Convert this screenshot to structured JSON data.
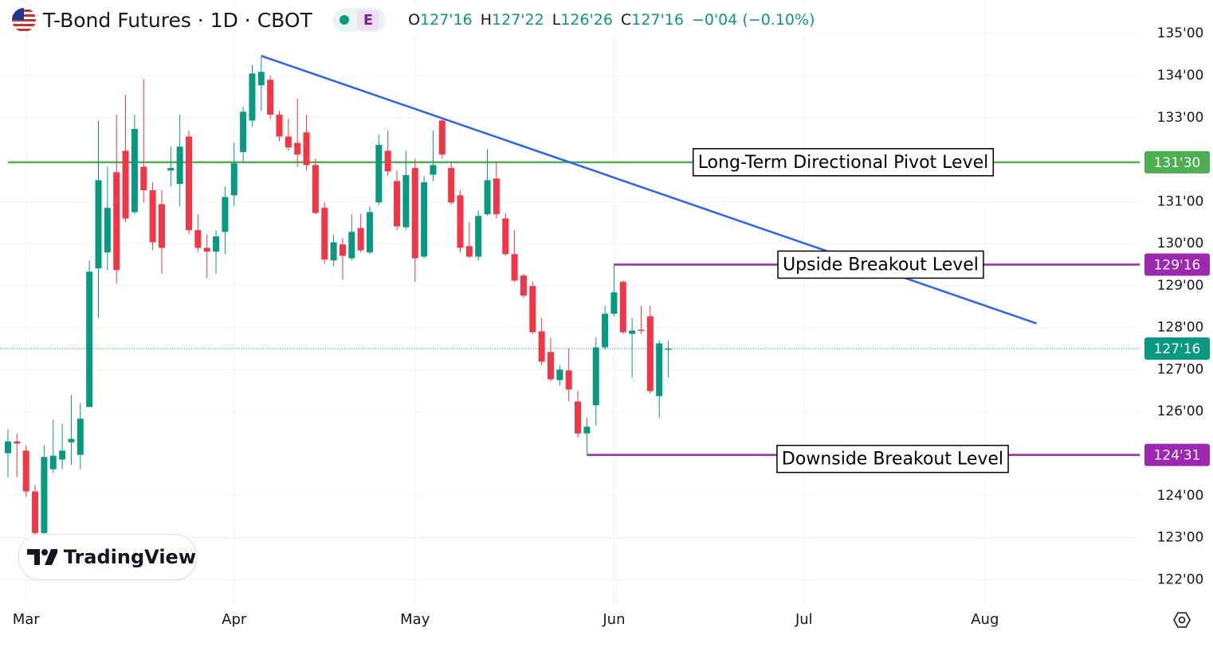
{
  "chart_data": {
    "type": "candlestick",
    "title": "T-Bond Futures · 1D · CBOT",
    "badge": "E",
    "ohlc_labels": [
      {
        "key": "O",
        "text": "127'16"
      },
      {
        "key": "H",
        "text": "127'22"
      },
      {
        "key": "L",
        "text": "126'26"
      },
      {
        "key": "C",
        "text": "127'16"
      }
    ],
    "change": "−0'04 (−0.10%)",
    "logo": "TradingView",
    "up_color": "#089981",
    "down_color": "#f23645",
    "grid": true,
    "categories": [
      null,
      null,
      "Mar",
      null,
      null,
      null,
      null,
      null,
      null,
      null,
      null,
      null,
      null,
      null,
      null,
      null,
      null,
      null,
      null,
      null,
      null,
      null,
      null,
      null,
      null,
      "Apr",
      null,
      null,
      null,
      null,
      null,
      null,
      null,
      null,
      null,
      null,
      null,
      null,
      null,
      null,
      null,
      null,
      null,
      null,
      null,
      "May",
      null,
      null,
      null,
      null,
      null,
      null,
      null,
      null,
      null,
      null,
      null,
      null,
      null,
      null,
      null,
      null,
      null,
      null,
      null,
      null,
      null,
      "Jun",
      null,
      null,
      null,
      null,
      null,
      null,
      null,
      null,
      null,
      null,
      null,
      null,
      null,
      null,
      null,
      null,
      null,
      null,
      null,
      null,
      "Jul",
      null,
      null,
      null,
      null,
      null,
      null,
      null,
      null,
      null,
      null,
      null,
      null,
      null,
      null,
      null,
      null,
      null,
      null,
      null,
      "Aug",
      null,
      null,
      null,
      null,
      null,
      null,
      null,
      null,
      null,
      null,
      null,
      null,
      null,
      null,
      null,
      null
    ],
    "open": [
      125.01,
      125.29,
      125.07,
      124.1,
      123.11,
      124.63,
      124.86,
      125.27,
      124.97,
      126.11,
      129.41,
      129.79,
      131.7,
      132.21,
      130.75,
      131.83,
      131.27,
      130.94,
      131.74,
      131.42,
      132.55,
      130.32,
      129.9,
      129.81,
      130.28,
      131.15,
      132.18,
      132.93,
      133.77,
      133.9,
      133.07,
      132.55,
      132.4,
      132.65,
      131.87,
      130.85,
      129.6,
      129.98,
      129.65,
      130.37,
      129.79,
      130.98,
      132.21,
      131.49,
      130.39,
      131.8,
      129.69,
      131.64,
      132.93,
      131.8,
      131.15,
      129.94,
      129.69,
      130.7,
      131.55,
      130.6,
      129.75,
      129.24,
      128.99,
      127.91,
      127.42,
      126.75,
      126.98,
      126.24,
      125.48,
      126.15,
      127.53,
      128.33,
      129.09,
      127.85,
      127.95,
      128.27,
      126.37,
      127.5,
      null,
      null,
      null,
      null,
      null,
      null,
      null,
      null,
      null,
      null,
      null,
      null,
      null,
      null,
      null,
      null,
      null,
      null,
      null,
      null,
      null,
      null,
      null,
      null,
      null,
      null,
      null,
      null,
      null,
      null,
      null,
      null,
      null,
      null,
      null,
      null,
      null,
      null,
      null,
      null,
      null,
      null,
      null,
      null,
      null,
      null,
      null,
      null,
      null,
      null,
      null
    ],
    "high": [
      125.58,
      125.48,
      125.2,
      124.25,
      125.2,
      125.81,
      125.71,
      126.39,
      126.2,
      129.6,
      132.93,
      131.83,
      133.07,
      133.54,
      133.07,
      133.92,
      131.46,
      131.27,
      132.31,
      133.07,
      132.69,
      130.7,
      130.22,
      130.32,
      131.36,
      132.4,
      133.26,
      134.26,
      134.45,
      134.01,
      133.16,
      132.97,
      133.45,
      133.07,
      132.02,
      130.98,
      130.22,
      130.13,
      130.7,
      130.7,
      130.89,
      132.59,
      132.69,
      131.74,
      132.21,
      132.02,
      131.61,
      132.69,
      133.01,
      131.93,
      131.27,
      130.51,
      130.79,
      132.25,
      131.93,
      130.73,
      130.32,
      129.28,
      129.09,
      128.23,
      127.76,
      127.1,
      127.51,
      126.49,
      125.86,
      127.76,
      128.52,
      129.5,
      129.12,
      128.23,
      128.52,
      128.52,
      127.7,
      127.6875,
      null,
      null,
      null,
      null,
      null,
      null,
      null,
      null,
      null,
      null,
      null,
      null,
      null,
      null,
      null,
      null,
      null,
      null,
      null,
      null,
      null,
      null,
      null,
      null,
      null,
      null,
      null,
      null,
      null,
      null,
      null,
      null,
      null,
      null,
      null,
      null,
      null,
      null,
      null,
      null,
      null,
      null,
      null,
      null,
      null,
      null,
      null,
      null,
      null,
      null,
      null
    ],
    "low": [
      124.44,
      124.44,
      123.97,
      122.92,
      122.92,
      124.54,
      124.63,
      124.73,
      124.63,
      126.11,
      128.23,
      129.37,
      129.05,
      130.51,
      130.7,
      130.98,
      129.84,
      129.28,
      131.36,
      130.89,
      130.22,
      129.79,
      129.18,
      129.28,
      129.75,
      130.89,
      131.93,
      132.78,
      133.16,
      132.97,
      132.44,
      132.21,
      131.83,
      131.74,
      130.7,
      129.52,
      129.46,
      129.14,
      129.6,
      129.79,
      129.75,
      130.92,
      131.61,
      130.32,
      130.32,
      129.09,
      129.65,
      131.49,
      132.02,
      130.92,
      129.79,
      129.65,
      129.6,
      130.66,
      130.6,
      129.71,
      129.09,
      128.71,
      127.85,
      127.1,
      126.72,
      126.62,
      126.24,
      125.39,
      124.97,
      125.67,
      127.47,
      128.27,
      127.85,
      126.81,
      127.85,
      126.43,
      125.86,
      126.8125,
      null,
      null,
      null,
      null,
      null,
      null,
      null,
      null,
      null,
      null,
      null,
      null,
      null,
      null,
      null,
      null,
      null,
      null,
      null,
      null,
      null,
      null,
      null,
      null,
      null,
      null,
      null,
      null,
      null,
      null,
      null,
      null,
      null,
      null,
      null,
      null,
      null,
      null,
      null,
      null,
      null,
      null,
      null,
      null,
      null,
      null,
      null,
      null,
      null,
      null,
      null
    ],
    "close": [
      125.29,
      125.24,
      124.1,
      123.11,
      124.92,
      124.95,
      125.07,
      125.35,
      125.83,
      129.33,
      131.51,
      130.85,
      129.37,
      130.6,
      132.73,
      131.27,
      130.03,
      129.9,
      131.8,
      132.31,
      130.32,
      129.9,
      129.81,
      130.17,
      131.11,
      131.91,
      133.14,
      134.05,
      134.09,
      133.07,
      132.55,
      132.29,
      132.12,
      131.87,
      130.73,
      129.62,
      130.03,
      129.71,
      130.28,
      129.84,
      130.75,
      132.35,
      131.72,
      130.41,
      131.63,
      129.65,
      131.46,
      131.87,
      132.12,
      130.98,
      129.9,
      129.69,
      130.66,
      131.51,
      130.7,
      129.75,
      129.12,
      128.76,
      127.89,
      127.19,
      126.77,
      127.0,
      126.53,
      125.48,
      125.64,
      127.53,
      128.33,
      128.84,
      127.89,
      127.93,
      127.93,
      126.49,
      127.625,
      127.5,
      null,
      null,
      null,
      null,
      null,
      null,
      null,
      null,
      null,
      null,
      null,
      null,
      null,
      null,
      null,
      null,
      null,
      null,
      null,
      null,
      null,
      null,
      null,
      null,
      null,
      null,
      null,
      null,
      null,
      null,
      null,
      null,
      null,
      null,
      null,
      null,
      null,
      null,
      null,
      null,
      null,
      null,
      null,
      null,
      null,
      null,
      null,
      null,
      null,
      null,
      null
    ],
    "ylim": [
      121.4,
      135.8
    ],
    "yticks": [
      {
        "value": 135,
        "label": "135'00"
      },
      {
        "value": 134,
        "label": "134'00"
      },
      {
        "value": 133,
        "label": "133'00"
      },
      {
        "value": 131,
        "label": "131'00"
      },
      {
        "value": 130,
        "label": "130'00"
      },
      {
        "value": 129,
        "label": "129'00"
      },
      {
        "value": 128,
        "label": "128'00"
      },
      {
        "value": 127,
        "label": "127'00"
      },
      {
        "value": 126,
        "label": "126'00"
      },
      {
        "value": 124,
        "label": "124'00"
      },
      {
        "value": 123,
        "label": "123'00"
      },
      {
        "value": 122,
        "label": "122'00"
      }
    ],
    "levels": [
      {
        "name": "Long-Term Directional Pivot Level",
        "value": 131.9375,
        "label": "131'30",
        "color": "#4caf50",
        "from": 0
      },
      {
        "name": "Upside Breakout Level",
        "value": 129.5,
        "label": "129'16",
        "color": "#9c27b0",
        "from": 67
      },
      {
        "name": "Downside Breakout Level",
        "value": 124.96875,
        "label": "124'31",
        "color": "#9c27b0",
        "from": 64
      }
    ],
    "trendline": {
      "x": [
        28,
        113.7
      ],
      "y": [
        134.47,
        128.1
      ],
      "color": "#2962ff"
    },
    "last_price": {
      "value": 127.5,
      "label": "127'16"
    }
  }
}
